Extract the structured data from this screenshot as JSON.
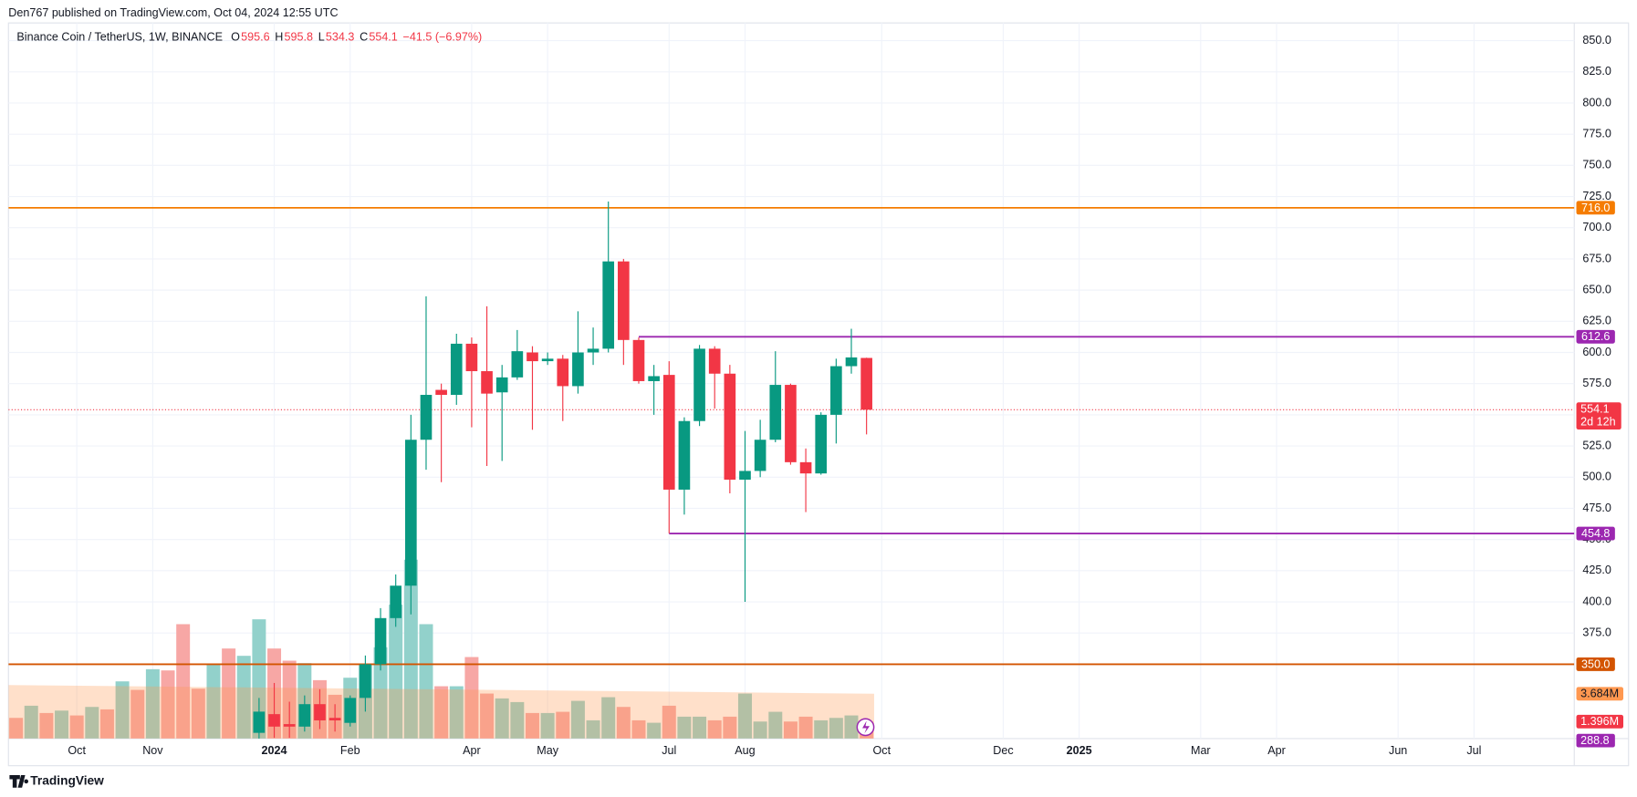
{
  "header": {
    "publisher": "Den767 published on TradingView.com, Oct 04, 2024 12:55 UTC"
  },
  "footer": {
    "brand": "TradingView"
  },
  "chart_data": {
    "type": "candlestick",
    "title": "Binance Coin / TetherUS, 1W, BINANCE",
    "legend": [
      {
        "key": "O",
        "value": "595.6"
      },
      {
        "key": "H",
        "value": "595.8"
      },
      {
        "key": "L",
        "value": "534.3"
      },
      {
        "key": "C",
        "value": "554.1"
      }
    ],
    "change": "−41.5 (−6.97%)",
    "x": [
      16,
      17,
      18,
      19,
      20,
      21,
      22,
      23,
      24,
      25,
      26,
      27,
      28,
      29,
      30,
      31,
      32,
      33,
      34,
      35,
      36,
      37,
      38,
      39,
      40,
      41,
      42,
      43,
      44,
      45,
      46,
      47,
      48,
      49,
      50,
      51,
      52,
      53,
      54,
      55,
      56
    ],
    "open": [
      295,
      310,
      302,
      300,
      318,
      307,
      303,
      323,
      350,
      387,
      413,
      530,
      570,
      566,
      607,
      585,
      568,
      580,
      600,
      593,
      595,
      573,
      600,
      603,
      673,
      610,
      577,
      582,
      490,
      545,
      603,
      583,
      498,
      505,
      530,
      574,
      512,
      503,
      550,
      589,
      595.6
    ],
    "high": [
      323,
      335,
      320,
      325,
      330,
      318,
      325,
      357,
      395,
      422,
      550,
      645,
      575,
      615,
      612,
      637,
      590,
      618,
      605,
      600,
      598,
      633,
      620,
      721,
      675,
      612,
      590,
      593,
      548,
      606,
      605,
      590,
      537,
      546,
      601,
      575,
      523,
      552,
      595,
      619,
      595.8
    ],
    "low": [
      290,
      291,
      291,
      296,
      298,
      296,
      300,
      312,
      345,
      380,
      390,
      506,
      496,
      558,
      540,
      509,
      513,
      578,
      538,
      590,
      545,
      567,
      590,
      600,
      590,
      575,
      550,
      455,
      470,
      541,
      555,
      487,
      400,
      500,
      528,
      510,
      472,
      502,
      527,
      583,
      534.3
    ],
    "close": [
      312,
      300,
      300,
      318,
      305,
      305,
      323,
      350,
      387,
      413,
      530,
      566,
      566,
      607,
      585,
      567,
      580,
      601,
      593,
      595,
      573,
      600,
      603,
      673,
      610,
      577,
      581,
      490,
      545,
      603,
      583,
      498,
      505,
      530,
      574,
      512,
      503,
      550,
      589,
      596,
      554.1
    ],
    "up_color": "#089981",
    "down_color": "#f23645",
    "xlim": [
      -0.5,
      102.6
    ],
    "xticks": [
      {
        "value": 4,
        "label": "Oct"
      },
      {
        "value": 9,
        "label": "Nov"
      },
      {
        "value": 17,
        "label": "2024",
        "bold": true
      },
      {
        "value": 22,
        "label": "Feb"
      },
      {
        "value": 30,
        "label": "Apr"
      },
      {
        "value": 35,
        "label": "May"
      },
      {
        "value": 43,
        "label": "Jul"
      },
      {
        "value": 48,
        "label": "Aug"
      },
      {
        "value": 57,
        "label": "Oct"
      },
      {
        "value": 65,
        "label": "Dec"
      },
      {
        "value": 70,
        "label": "2025",
        "bold": true
      },
      {
        "value": 78,
        "label": "Mar"
      },
      {
        "value": 83,
        "label": "Apr"
      },
      {
        "value": 91,
        "label": "Jun"
      },
      {
        "value": 96,
        "label": "Jul"
      }
    ],
    "ylim": [
      290.4,
      864.2
    ],
    "yticks": [
      {
        "value": 375,
        "label": "375.0"
      },
      {
        "value": 400,
        "label": "400.0"
      },
      {
        "value": 425,
        "label": "425.0"
      },
      {
        "value": 450,
        "label": "450.0"
      },
      {
        "value": 475,
        "label": "475.0"
      },
      {
        "value": 500,
        "label": "500.0"
      },
      {
        "value": 525,
        "label": "525.0"
      },
      {
        "value": 550,
        "label": "550.0"
      },
      {
        "value": 575,
        "label": "575.0"
      },
      {
        "value": 600,
        "label": "600.0"
      },
      {
        "value": 625,
        "label": "625.0"
      },
      {
        "value": 650,
        "label": "650.0"
      },
      {
        "value": 675,
        "label": "675.0"
      },
      {
        "value": 700,
        "label": "700.0"
      },
      {
        "value": 725,
        "label": "725.0"
      },
      {
        "value": 750,
        "label": "750.0"
      },
      {
        "value": 775,
        "label": "775.0"
      },
      {
        "value": 800,
        "label": "800.0"
      },
      {
        "value": 825,
        "label": "825.0"
      },
      {
        "value": 850,
        "label": "850.0"
      }
    ],
    "grid": true,
    "levels": [
      {
        "value": 716,
        "label": "716.0",
        "color": "#f57c00"
      },
      {
        "value": 612.6,
        "color": "#9c27b0",
        "start": 41
      },
      {
        "value": 454.8,
        "color": "#9c27b0",
        "start": 43
      },
      {
        "value": 350,
        "label": "350.0",
        "color": "#d35400"
      }
    ],
    "last_price": 554.1,
    "countdown": "2d 12h",
    "extra_labels": [
      {
        "value": 288.8,
        "label": "288.8",
        "color": "#9c27b0"
      }
    ],
    "volume": {
      "x": [
        0,
        1,
        2,
        3,
        4,
        5,
        6,
        7,
        8,
        9,
        10,
        11,
        12,
        13,
        14,
        15,
        16,
        17,
        18,
        19,
        20,
        21,
        22,
        23,
        24,
        25,
        26,
        27,
        28,
        29,
        30,
        31,
        32,
        33,
        34,
        35,
        36,
        37,
        38,
        39,
        40,
        41,
        42,
        43,
        44,
        45,
        46,
        47,
        48,
        49,
        50,
        51,
        52,
        53,
        54,
        55,
        56
      ],
      "values": [
        1.7,
        2.7,
        2.1,
        2.3,
        1.9,
        2.6,
        2.4,
        4.7,
        4.0,
        5.7,
        5.6,
        9.4,
        4.1,
        6.1,
        7.4,
        6.8,
        9.8,
        7.4,
        6.4,
        6.2,
        4.8,
        3.6,
        5.0,
        6.1,
        7.5,
        11.0,
        14.7,
        9.4,
        4.3,
        4.3,
        6.7,
        3.7,
        3.3,
        3.0,
        2.1,
        2.1,
        2.2,
        3.1,
        1.5,
        3.4,
        2.6,
        1.5,
        1.3,
        2.7,
        1.8,
        1.8,
        1.5,
        1.8,
        3.7,
        1.4,
        2.2,
        1.4,
        1.8,
        1.5,
        1.7,
        1.9,
        1.396
      ],
      "colors": [
        "#f7a7a5",
        "#92d1cb",
        "#f7a7a5",
        "#92d1cb",
        "#f7a7a5",
        "#92d1cb",
        "#f7a7a5",
        "#92d1cb",
        "#f7a7a5",
        "#92d1cb",
        "#f7a7a5",
        "#f7a7a5",
        "#f7a7a5",
        "#92d1cb",
        "#f7a7a5",
        "#92d1cb",
        "#92d1cb",
        "#f7a7a5",
        "#f7a7a5",
        "#92d1cb",
        "#f7a7a5",
        "#f7a7a5",
        "#92d1cb",
        "#92d1cb",
        "#92d1cb",
        "#92d1cb",
        "#92d1cb",
        "#92d1cb",
        "#f7a7a5",
        "#92d1cb",
        "#f7a7a5",
        "#f7a7a5",
        "#92d1cb",
        "#92d1cb",
        "#f7a7a5",
        "#92d1cb",
        "#f7a7a5",
        "#92d1cb",
        "#92d1cb",
        "#92d1cb",
        "#f7a7a5",
        "#f7a7a5",
        "#92d1cb",
        "#f7a7a5",
        "#92d1cb",
        "#92d1cb",
        "#f7a7a5",
        "#f7a7a5",
        "#92d1cb",
        "#92d1cb",
        "#92d1cb",
        "#f7a7a5",
        "#f7a7a5",
        "#92d1cb",
        "#92d1cb",
        "#92d1cb",
        "#f7a7a5"
      ],
      "ylim": [
        0,
        58.8
      ],
      "ma": [
        4.4,
        3.684
      ],
      "ma_x": [
        0,
        56
      ],
      "ma_color": "#ff9850",
      "ma_label": "3.684M",
      "last_label": "1.396M"
    }
  }
}
